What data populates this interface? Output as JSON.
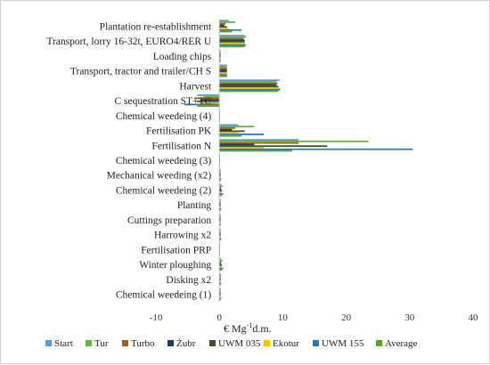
{
  "chart_data": {
    "type": "bar",
    "orientation": "horizontal",
    "title": "",
    "xlabel_parts": [
      "€ Mg",
      "-1",
      "d.m."
    ],
    "ylabel": "",
    "xlim": [
      -10,
      40
    ],
    "xticks": [
      -10,
      0,
      10,
      20,
      30,
      40
    ],
    "grid": false,
    "legend_position": "bottom",
    "categories": [
      "Plantation re-establishment",
      "Transport, lorry 16-32t, EURO4/RER U",
      "Loading chips",
      "Transport, tractor and trailer/CH S",
      "Harvest",
      "C sequestration ST+TC",
      "Chemical weedeing (4)",
      "Fertilisation PK",
      "Fertilisation N",
      "Chemical weedeing (3)",
      "Mechanical weeding (x2)",
      "Chemical weedeing (2)",
      "Planting",
      "Cuttings preparation",
      "Harrowing x2",
      "Fertilisation PRP",
      "Winter ploughing",
      "Disking x2",
      "Chemical weedeing (1)"
    ],
    "series": [
      {
        "name": "Start",
        "color": "#5b9bd5",
        "values": [
          1.5,
          4.0,
          0.2,
          1.2,
          9.5,
          -3.5,
          0.1,
          3.0,
          12.5,
          0.1,
          0.2,
          0.3,
          0.2,
          0.2,
          0.2,
          0.1,
          0.3,
          0.2,
          0.2
        ]
      },
      {
        "name": "Tur",
        "color": "#70ad47",
        "values": [
          2.5,
          4.2,
          0.2,
          1.2,
          9.0,
          -2.5,
          0.1,
          5.5,
          23.5,
          0.1,
          0.2,
          0.5,
          0.2,
          0.2,
          0.2,
          0.1,
          0.5,
          0.3,
          0.2
        ]
      },
      {
        "name": "Turbo",
        "color": "#9e6413",
        "values": [
          1.0,
          3.8,
          0.2,
          1.2,
          9.2,
          -4.0,
          0.1,
          2.5,
          12.5,
          0.1,
          0.2,
          0.3,
          0.2,
          0.2,
          0.2,
          0.1,
          0.3,
          0.2,
          0.2
        ]
      },
      {
        "name": "Żubr",
        "color": "#1f3864",
        "values": [
          0.8,
          4.0,
          0.2,
          1.2,
          9.0,
          -3.0,
          0.1,
          2.0,
          5.5,
          0.1,
          0.2,
          0.3,
          0.2,
          0.2,
          0.2,
          0.1,
          0.3,
          0.2,
          0.2
        ]
      },
      {
        "name": "UWM 035",
        "color": "#375623",
        "values": [
          1.2,
          4.0,
          0.2,
          1.2,
          9.3,
          -3.5,
          0.1,
          4.0,
          17.0,
          0.1,
          0.2,
          0.4,
          0.2,
          0.2,
          0.2,
          0.1,
          0.4,
          0.2,
          0.2
        ]
      },
      {
        "name": "Ekotur",
        "color": "#ffc000",
        "values": [
          1.5,
          4.0,
          0.2,
          1.2,
          9.5,
          -3.0,
          0.1,
          3.0,
          7.0,
          0.1,
          0.2,
          0.3,
          0.2,
          0.2,
          0.2,
          0.1,
          0.3,
          0.2,
          0.2
        ]
      },
      {
        "name": "UWM 155",
        "color": "#2e75b6",
        "values": [
          3.5,
          4.2,
          0.2,
          1.2,
          9.6,
          -5.5,
          0.1,
          7.0,
          30.5,
          0.1,
          0.3,
          0.6,
          0.3,
          0.2,
          0.3,
          0.1,
          0.6,
          0.3,
          0.3
        ]
      },
      {
        "name": "Average",
        "color": "#4ea72e",
        "values": [
          2.0,
          4.0,
          0.2,
          1.2,
          9.3,
          -3.5,
          0.1,
          3.5,
          11.5,
          0.1,
          0.2,
          0.4,
          0.2,
          0.2,
          0.2,
          0.1,
          0.4,
          0.2,
          0.2
        ]
      }
    ]
  }
}
